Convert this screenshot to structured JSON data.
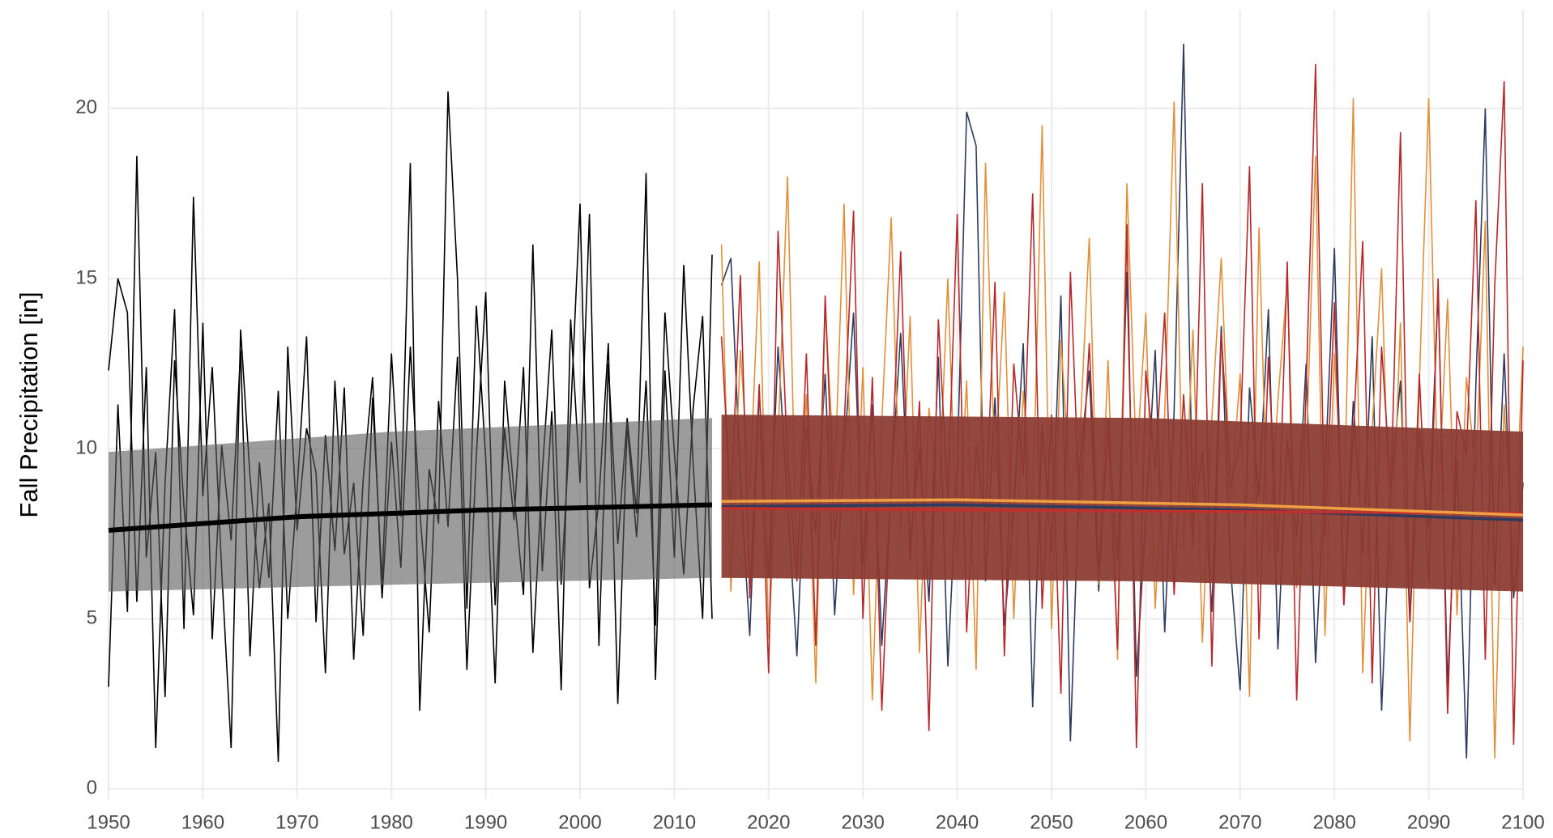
{
  "chart_data": {
    "type": "line",
    "y_label": "Fall Precipitation [in]",
    "xlim": [
      1950,
      2100
    ],
    "ylim": [
      -0.3,
      22.9
    ],
    "xticks": [
      1950,
      1960,
      1970,
      1980,
      1990,
      2000,
      2010,
      2020,
      2030,
      2040,
      2050,
      2060,
      2070,
      2080,
      2090,
      2100
    ],
    "yticks": [
      0,
      5,
      10,
      15,
      20
    ],
    "grid": true,
    "groups": [
      {
        "x": [
          1950,
          1951,
          1952,
          1953,
          1954,
          1955,
          1956,
          1957,
          1958,
          1959,
          1960,
          1961,
          1962,
          1963,
          1964,
          1965,
          1966,
          1967,
          1968,
          1969,
          1970,
          1971,
          1972,
          1973,
          1974,
          1975,
          1976,
          1977,
          1978,
          1979,
          1980,
          1981,
          1982,
          1983,
          1984,
          1985,
          1986,
          1987,
          1988,
          1989,
          1990,
          1991,
          1992,
          1993,
          1994,
          1995,
          1996,
          1997,
          1998,
          1999,
          2000,
          2001,
          2002,
          2003,
          2004,
          2005,
          2006,
          2007,
          2008,
          2009,
          2010,
          2011,
          2012,
          2013,
          2014
        ],
        "series": [
          {
            "color": "#000000",
            "values": [
              12.3,
              15.0,
              14.0,
              5.5,
              12.4,
              1.2,
              9.0,
              14.1,
              4.7,
              17.4,
              8.6,
              12.4,
              6.4,
              1.2,
              13.5,
              9.2,
              5.9,
              8.4,
              0.8,
              13.0,
              7.6,
              10.6,
              9.3,
              3.4,
              12.0,
              6.9,
              9.0,
              4.5,
              11.5,
              6.1,
              12.8,
              8.0,
              18.4,
              2.3,
              9.4,
              7.8,
              20.5,
              15.0,
              5.3,
              14.2,
              9.7,
              3.1,
              12.0,
              8.7,
              5.7,
              16.0,
              6.4,
              11.1,
              2.9,
              13.8,
              9.0,
              16.9,
              4.2,
              12.5,
              7.2,
              10.9,
              8.1,
              18.1,
              3.2,
              12.3,
              6.8,
              15.4,
              9.5,
              5.0,
              15.7
            ]
          },
          {
            "color": "#000000",
            "values": [
              3.0,
              11.3,
              5.2,
              18.6,
              6.8,
              9.9,
              2.7,
              12.6,
              8.3,
              5.1,
              13.7,
              4.4,
              10.1,
              7.3,
              12.9,
              3.9,
              9.6,
              6.2,
              11.7,
              5.0,
              8.8,
              13.3,
              4.9,
              10.4,
              7.0,
              11.8,
              3.8,
              9.1,
              12.1,
              5.6,
              10.2,
              6.5,
              13.0,
              8.2,
              4.6,
              11.4,
              7.7,
              12.7,
              3.5,
              9.8,
              14.6,
              5.4,
              10.6,
              7.9,
              12.4,
              4.0,
              9.3,
              13.5,
              6.0,
              11.0,
              17.2,
              5.9,
              8.5,
              13.1,
              2.5,
              10.7,
              7.4,
              12.0,
              4.8,
              14.0,
              9.9,
              6.3,
              11.2,
              13.9,
              5.0
            ]
          }
        ],
        "band": {
          "color": "#5a5a5a",
          "x": [
            1950,
            1980,
            2014
          ],
          "lower": [
            5.8,
            6.0,
            6.2
          ],
          "upper": [
            9.9,
            10.5,
            10.9
          ]
        },
        "trends": [
          {
            "color": "#000000",
            "x": [
              1950,
              1970,
              1990,
              2014
            ],
            "values": [
              7.6,
              8.0,
              8.2,
              8.35
            ]
          }
        ]
      },
      {
        "x": [
          2015,
          2016,
          2017,
          2018,
          2019,
          2020,
          2021,
          2022,
          2023,
          2024,
          2025,
          2026,
          2027,
          2028,
          2029,
          2030,
          2031,
          2032,
          2033,
          2034,
          2035,
          2036,
          2037,
          2038,
          2039,
          2040,
          2041,
          2042,
          2043,
          2044,
          2045,
          2046,
          2047,
          2048,
          2049,
          2050,
          2051,
          2052,
          2053,
          2054,
          2055,
          2056,
          2057,
          2058,
          2059,
          2060,
          2061,
          2062,
          2063,
          2064,
          2065,
          2066,
          2067,
          2068,
          2069,
          2070,
          2071,
          2072,
          2073,
          2074,
          2075,
          2076,
          2077,
          2078,
          2079,
          2080,
          2081,
          2082,
          2083,
          2084,
          2085,
          2086,
          2087,
          2088,
          2089,
          2090,
          2091,
          2092,
          2093,
          2094,
          2095,
          2096,
          2097,
          2098,
          2099,
          2100
        ],
        "series": [
          {
            "color": "#2e3b5e",
            "values": [
              14.8,
              15.6,
              9.1,
              4.5,
              11.7,
              6.2,
              13.0,
              8.4,
              3.9,
              10.6,
              7.5,
              12.2,
              5.1,
              9.8,
              14.0,
              6.6,
              11.3,
              4.2,
              8.9,
              13.4,
              7.2,
              10.0,
              5.5,
              12.7,
              3.6,
              9.4,
              19.9,
              18.9,
              6.1,
              11.5,
              4.8,
              8.2,
              13.1,
              2.4,
              10.7,
              7.0,
              14.5,
              1.4,
              9.6,
              12.3,
              5.8,
              10.9,
              6.7,
              15.2,
              3.3,
              8.0,
              12.9,
              4.6,
              11.1,
              21.9,
              7.8,
              9.9,
              5.2,
              13.6,
              6.4,
              2.9,
              11.8,
              8.6,
              14.1,
              4.1,
              10.3,
              7.4,
              12.5,
              3.7,
              9.2,
              15.9,
              5.4,
              11.4,
              6.9,
              13.3,
              2.3,
              8.8,
              12.0,
              4.9,
              10.5,
              7.6,
              14.7,
              3.0,
              9.7,
              0.9,
              11.9,
              20.0,
              6.0,
              12.8,
              5.6,
              9.0
            ]
          },
          {
            "color": "#e0903a",
            "values": [
              16.0,
              5.8,
              12.9,
              8.7,
              15.5,
              4.4,
              10.2,
              18.0,
              6.3,
              11.6,
              3.1,
              14.2,
              9.0,
              17.2,
              5.7,
              12.4,
              2.6,
              10.8,
              16.8,
              7.5,
              13.9,
              4.0,
              11.2,
              8.1,
              15.0,
              6.6,
              12.0,
              3.5,
              18.4,
              9.3,
              14.6,
              5.0,
              11.7,
              7.9,
              19.5,
              4.7,
              13.2,
              8.8,
              10.3,
              16.2,
              6.0,
              12.6,
              3.8,
              17.8,
              9.5,
              14.0,
              5.3,
              11.0,
              20.2,
              7.1,
              13.5,
              4.3,
              10.9,
              15.6,
              8.4,
              12.2,
              2.7,
              16.5,
              6.8,
              11.4,
              14.9,
              5.9,
              9.7,
              18.6,
              4.5,
              12.8,
              7.7,
              20.3,
              3.4,
              10.6,
              15.3,
              6.2,
              13.7,
              1.4,
              11.9,
              20.3,
              8.3,
              14.4,
              5.1,
              12.1,
              9.2,
              16.7,
              0.9,
              11.3,
              6.5,
              13.0
            ]
          },
          {
            "color": "#b5282c",
            "values": [
              13.3,
              8.2,
              15.1,
              5.6,
              11.9,
              3.4,
              16.4,
              9.7,
              6.1,
              12.8,
              4.2,
              14.5,
              7.3,
              10.6,
              17.0,
              5.0,
              12.1,
              2.3,
              9.0,
              15.8,
              6.7,
              11.4,
              1.7,
              13.8,
              8.5,
              16.9,
              4.6,
              10.1,
              7.8,
              14.9,
              3.9,
              12.5,
              9.2,
              17.5,
              5.3,
              11.0,
              2.8,
              15.2,
              8.0,
              13.1,
              6.4,
              10.7,
              4.1,
              16.6,
              1.2,
              12.3,
              9.4,
              14.0,
              5.7,
              11.6,
              7.1,
              17.8,
              3.6,
              13.4,
              8.9,
              10.2,
              18.3,
              4.4,
              12.7,
              6.9,
              15.5,
              2.6,
              11.8,
              21.3,
              7.4,
              14.3,
              5.4,
              10.4,
              16.1,
              3.1,
              13.0,
              8.7,
              19.3,
              4.9,
              12.2,
              6.0,
              15.0,
              2.2,
              11.1,
              9.8,
              17.3,
              3.8,
              14.8,
              20.8,
              1.3,
              12.6
            ]
          }
        ],
        "band": {
          "color": "#8b3a30",
          "x": [
            2015,
            2060,
            2100
          ],
          "lower": [
            6.2,
            6.1,
            5.8
          ],
          "upper": [
            11.0,
            10.9,
            10.5
          ]
        },
        "trends": [
          {
            "color": "#2e3b5e",
            "x": [
              2015,
              2040,
              2070,
              2100
            ],
            "values": [
              8.3,
              8.35,
              8.2,
              7.9
            ]
          },
          {
            "color": "#c0302c",
            "x": [
              2015,
              2040,
              2070,
              2100
            ],
            "values": [
              8.25,
              8.2,
              8.15,
              8.1
            ]
          },
          {
            "color": "#f0a040",
            "x": [
              2015,
              2040,
              2070,
              2100
            ],
            "values": [
              8.45,
              8.5,
              8.35,
              8.05
            ]
          }
        ]
      }
    ]
  }
}
